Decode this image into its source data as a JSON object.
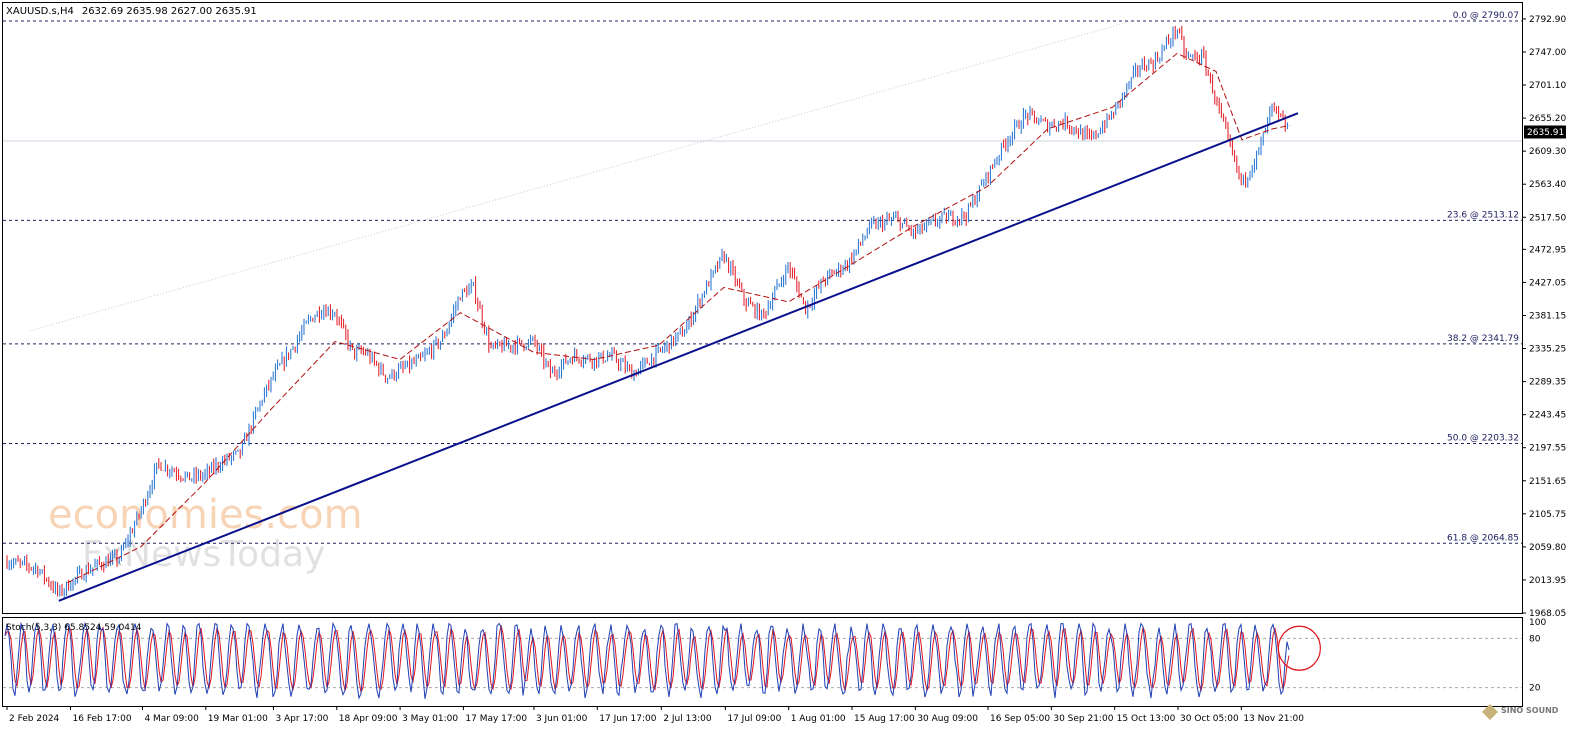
{
  "header": {
    "symbol": "XAUUSD.s,H4",
    "ohlc": "2632.69 2635.98 2627.00 2635.91"
  },
  "watermark": {
    "line1": "economies.com",
    "line2": "FxNewsToday"
  },
  "badge": {
    "text": "SINO SOUND"
  },
  "colors": {
    "bull": "#1e6fd0",
    "bear": "#e0141e",
    "trendline": "#0a0f8c",
    "ma": "#b40f0f",
    "fib": "#202060",
    "stoch_main": "#1e3fb4",
    "stoch_signal": "#e0141e",
    "annotation_circle": "#e0141e",
    "current_price_bg": "#000000"
  },
  "chart_data": {
    "type": "line",
    "subtype": "candlestick",
    "title": "",
    "xlabel": "",
    "ylabel": "",
    "timeframe": "H4",
    "ylim": [
      1968.05,
      2815
    ],
    "y_ticks": [
      "2792.90",
      "2747.00",
      "2701.10",
      "2655.20",
      "2609.30",
      "2563.40",
      "2517.50",
      "2472.95",
      "2427.05",
      "2381.15",
      "2335.25",
      "2289.35",
      "2243.45",
      "2197.55",
      "2151.65",
      "2105.75",
      "2059.80",
      "2013.95",
      "1968.05"
    ],
    "x_ticks": [
      "2 Feb 2024",
      "16 Feb 17:00",
      "4 Mar 09:00",
      "19 Mar 01:00",
      "3 Apr 17:00",
      "18 Apr 09:00",
      "3 May 01:00",
      "17 May 17:00",
      "3 Jun 01:00",
      "17 Jun 17:00",
      "2 Jul 13:00",
      "17 Jul 09:00",
      "1 Aug 01:00",
      "15 Aug 17:00",
      "30 Aug 09:00",
      "16 Sep 05:00",
      "30 Sep 21:00",
      "15 Oct 13:00",
      "30 Oct 05:00",
      "13 Nov 21:00"
    ],
    "current_price": 2635.91,
    "current_price_label": "2635.91",
    "series": [
      {
        "kind": "price_close_approx",
        "points": [
          [
            "2 Feb 2024",
            2040
          ],
          [
            "9 Feb",
            2030
          ],
          [
            "14 Feb",
            1995
          ],
          [
            "19 Feb",
            2022
          ],
          [
            "23 Feb",
            2035
          ],
          [
            "28 Feb",
            2045
          ],
          [
            "4 Mar",
            2110
          ],
          [
            "8 Mar",
            2175
          ],
          [
            "12 Mar",
            2165
          ],
          [
            "15 Mar",
            2155
          ],
          [
            "19 Mar",
            2160
          ],
          [
            "22 Mar",
            2175
          ],
          [
            "27 Mar",
            2190
          ],
          [
            "1 Apr",
            2265
          ],
          [
            "4 Apr",
            2300
          ],
          [
            "8 Apr",
            2335
          ],
          [
            "12 Apr",
            2375
          ],
          [
            "15 Apr",
            2390
          ],
          [
            "18 Apr",
            2385
          ],
          [
            "22 Apr",
            2330
          ],
          [
            "25 Apr",
            2330
          ],
          [
            "30 Apr",
            2295
          ],
          [
            "3 May",
            2305
          ],
          [
            "8 May",
            2320
          ],
          [
            "13 May",
            2350
          ],
          [
            "17 May",
            2410
          ],
          [
            "20 May",
            2420
          ],
          [
            "24 May",
            2335
          ],
          [
            "29 May",
            2340
          ],
          [
            "3 Jun",
            2345
          ],
          [
            "7 Jun",
            2300
          ],
          [
            "12 Jun",
            2325
          ],
          [
            "17 Jun",
            2320
          ],
          [
            "21 Jun",
            2325
          ],
          [
            "26 Jun",
            2300
          ],
          [
            "2 Jul",
            2330
          ],
          [
            "8 Jul",
            2360
          ],
          [
            "12 Jul",
            2410
          ],
          [
            "17 Jul",
            2465
          ],
          [
            "22 Jul",
            2400
          ],
          [
            "26 Jul",
            2380
          ],
          [
            "1 Aug",
            2450
          ],
          [
            "5 Aug",
            2390
          ],
          [
            "9 Aug",
            2430
          ],
          [
            "15 Aug",
            2455
          ],
          [
            "20 Aug",
            2505
          ],
          [
            "26 Aug",
            2515
          ],
          [
            "30 Aug",
            2495
          ],
          [
            "5 Sep",
            2515
          ],
          [
            "11 Sep",
            2520
          ],
          [
            "16 Sep",
            2575
          ],
          [
            "20 Sep",
            2620
          ],
          [
            "25 Sep",
            2660
          ],
          [
            "30 Sep",
            2645
          ],
          [
            "4 Oct",
            2650
          ],
          [
            "10 Oct",
            2625
          ],
          [
            "15 Oct",
            2660
          ],
          [
            "21 Oct",
            2725
          ],
          [
            "25 Oct",
            2735
          ],
          [
            "30 Oct",
            2780
          ],
          [
            "1 Nov",
            2740
          ],
          [
            "5 Nov",
            2740
          ],
          [
            "8 Nov",
            2680
          ],
          [
            "12 Nov",
            2600
          ],
          [
            "14 Nov",
            2563
          ],
          [
            "18 Nov",
            2610
          ],
          [
            "21 Nov",
            2670
          ],
          [
            "25 Nov",
            2635.91
          ]
        ]
      },
      {
        "kind": "moving_average_approx",
        "points": [
          [
            "16 Feb",
            2010
          ],
          [
            "4 Mar",
            2060
          ],
          [
            "19 Mar",
            2150
          ],
          [
            "3 Apr",
            2250
          ],
          [
            "18 Apr",
            2345
          ],
          [
            "3 May",
            2320
          ],
          [
            "17 May",
            2385
          ],
          [
            "3 Jun",
            2330
          ],
          [
            "17 Jun",
            2320
          ],
          [
            "2 Jul",
            2340
          ],
          [
            "17 Jul",
            2420
          ],
          [
            "1 Aug",
            2400
          ],
          [
            "15 Aug",
            2450
          ],
          [
            "30 Aug",
            2505
          ],
          [
            "16 Sep",
            2560
          ],
          [
            "30 Sep",
            2640
          ],
          [
            "15 Oct",
            2670
          ],
          [
            "30 Oct",
            2745
          ],
          [
            "8 Nov",
            2720
          ],
          [
            "14 Nov",
            2625
          ],
          [
            "21 Nov",
            2640
          ],
          [
            "25 Nov",
            2645
          ]
        ]
      },
      {
        "kind": "trendline",
        "points": [
          [
            "14 Feb",
            1985
          ],
          [
            "27 Nov",
            2662
          ]
        ]
      }
    ],
    "fibonacci": [
      {
        "label": "0.0 @ 2790.07",
        "value": 2790.07
      },
      {
        "label": "23.6 @ 2513.12",
        "value": 2513.12
      },
      {
        "label": "38.2 @ 2341.79",
        "value": 2341.79
      },
      {
        "label": "50.0 @ 2203.32",
        "value": 2203.32
      },
      {
        "label": "61.8 @ 2064.85",
        "value": 2064.85
      }
    ],
    "stochastic": {
      "label": "Stoch(5,3,3) 65.8524 59.0414",
      "main": 65.8524,
      "signal": 59.0414,
      "ylim": [
        0,
        100
      ],
      "y_ticks": [
        "100",
        "80",
        "20"
      ],
      "levels": [
        80,
        20
      ]
    }
  }
}
